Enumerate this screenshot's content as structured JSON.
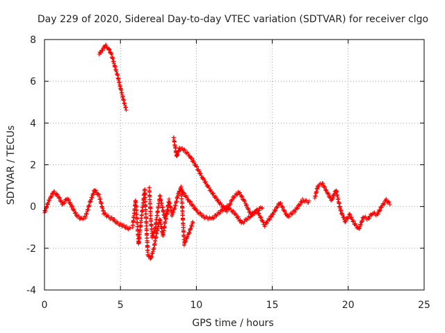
{
  "chart_data": {
    "type": "scatter",
    "title": "Day 229 of 2020, Sidereal Day-to-day VTEC variation (SDTVAR) for receiver clgo",
    "xlabel": "GPS time / hours",
    "ylabel": "SDTVAR / TECUs",
    "xlim": [
      0,
      25
    ],
    "ylim": [
      -4,
      8
    ],
    "xticks": [
      "0",
      "5",
      "10",
      "15",
      "20",
      "25"
    ],
    "yticks": [
      "-4",
      "-2",
      "0",
      "2",
      "4",
      "6",
      "8"
    ],
    "grid": true,
    "marker": "+",
    "series": [
      {
        "name": "SDTVAR",
        "color": "#ff0000",
        "segments": [
          {
            "x": [
              0.0,
              0.3,
              0.6,
              0.9,
              1.2,
              1.5,
              1.8,
              2.1,
              2.4,
              2.7,
              3.0,
              3.3,
              3.6,
              3.9,
              4.2,
              4.5,
              4.8,
              5.1,
              5.4,
              5.7
            ],
            "y": [
              -0.3,
              0.3,
              0.7,
              0.5,
              0.1,
              0.4,
              0.0,
              -0.4,
              -0.6,
              -0.5,
              0.2,
              0.8,
              0.5,
              -0.3,
              -0.5,
              -0.6,
              -0.8,
              -0.9,
              -1.0,
              -1.1
            ]
          },
          {
            "x": [
              3.6,
              3.8,
              4.0,
              4.2,
              4.4,
              4.6,
              4.8,
              5.0,
              5.2,
              5.4
            ],
            "y": [
              7.3,
              7.5,
              7.7,
              7.6,
              7.3,
              6.8,
              6.3,
              5.7,
              5.1,
              4.6
            ]
          },
          {
            "x": [
              5.8,
              6.0,
              6.2,
              6.4,
              6.6,
              6.8,
              7.0,
              7.2,
              7.4,
              7.6,
              7.8,
              8.0,
              8.2,
              8.4,
              8.6,
              8.8,
              9.0,
              9.2,
              9.5,
              9.8
            ],
            "y": [
              -1.0,
              0.3,
              -1.8,
              -0.4,
              0.8,
              -2.3,
              -2.5,
              -2.0,
              -1.2,
              -0.6,
              -1.4,
              -0.5,
              0.3,
              -0.4,
              0.0,
              0.6,
              0.9,
              -1.8,
              -1.3,
              -0.7
            ]
          },
          {
            "x": [
              6.9,
              7.0,
              7.1,
              7.3,
              7.6,
              7.9,
              8.2
            ],
            "y": [
              0.9,
              -0.6,
              -1.5,
              -1.0,
              0.5,
              -0.5,
              -0.2
            ]
          },
          {
            "x": [
              8.5,
              8.6,
              8.7,
              8.9,
              9.2,
              9.6,
              10.0,
              10.4,
              10.8,
              11.2,
              11.6,
              12.0,
              12.4,
              12.8,
              13.2,
              13.6,
              14.0,
              14.4
            ],
            "y": [
              3.3,
              2.9,
              2.4,
              2.8,
              2.7,
              2.4,
              1.9,
              1.4,
              0.9,
              0.5,
              0.1,
              -0.2,
              0.4,
              0.7,
              0.2,
              -0.4,
              -0.2,
              0.0
            ]
          },
          {
            "x": [
              9.0,
              9.5,
              10.0,
              10.5,
              11.0,
              11.5,
              12.0,
              12.5,
              13.0,
              13.5,
              14.0,
              14.5,
              15.0,
              15.5,
              16.0,
              16.5,
              17.0,
              17.5
            ],
            "y": [
              0.8,
              0.3,
              -0.2,
              -0.5,
              -0.6,
              -0.3,
              0.0,
              -0.3,
              -0.8,
              -0.5,
              -0.2,
              -0.9,
              -0.4,
              0.2,
              -0.5,
              -0.2,
              0.3,
              0.2
            ]
          },
          {
            "x": [
              17.8,
              18.0,
              18.3,
              18.6,
              18.9,
              19.2,
              19.5,
              19.8,
              20.1,
              20.4,
              20.7,
              21.0,
              21.3,
              21.6,
              21.9,
              22.2,
              22.5,
              22.8
            ],
            "y": [
              0.4,
              1.0,
              1.1,
              0.7,
              0.3,
              0.8,
              -0.2,
              -0.7,
              -0.4,
              -0.8,
              -1.1,
              -0.5,
              -0.6,
              -0.3,
              -0.4,
              0.0,
              0.3,
              0.1
            ]
          }
        ]
      }
    ]
  }
}
